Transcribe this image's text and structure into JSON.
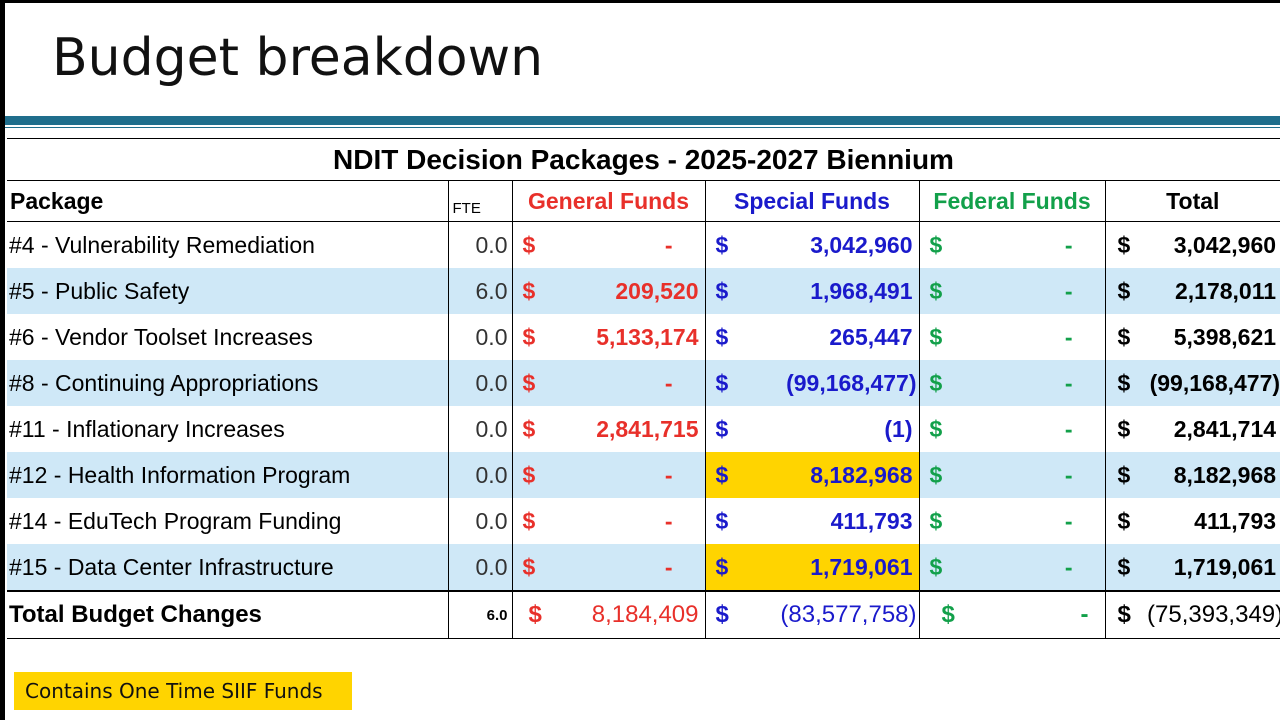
{
  "slide": {
    "title": "Budget breakdown"
  },
  "table": {
    "title": "NDIT Decision Packages - 2025-2027 Biennium",
    "headers": {
      "package": "Package",
      "fte": "FTE",
      "general": "General Funds",
      "special": "Special Funds",
      "federal": "Federal Funds",
      "total": "Total"
    },
    "currency_symbol": "$",
    "rows": [
      {
        "package": "#4 - Vulnerability Remediation",
        "fte": "0.0",
        "general": "-",
        "special": "3,042,960",
        "federal": "-",
        "total": "3,042,960",
        "shaded": false,
        "siif": false
      },
      {
        "package": "#5 - Public Safety",
        "fte": "6.0",
        "general": "209,520",
        "special": "1,968,491",
        "federal": "-",
        "total": "2,178,011",
        "shaded": true,
        "siif": false
      },
      {
        "package": "#6 - Vendor Toolset Increases",
        "fte": "0.0",
        "general": "5,133,174",
        "special": "265,447",
        "federal": "-",
        "total": "5,398,621",
        "shaded": false,
        "siif": false
      },
      {
        "package": "#8 - Continuing Appropriations",
        "fte": "0.0",
        "general": "-",
        "special": "(99,168,477)",
        "federal": "-",
        "total": "(99,168,477)",
        "shaded": true,
        "siif": false
      },
      {
        "package": "#11 - Inflationary Increases",
        "fte": "0.0",
        "general": "2,841,715",
        "special": "(1)",
        "federal": "-",
        "total": "2,841,714",
        "shaded": false,
        "siif": false
      },
      {
        "package": "#12 - Health Information Program",
        "fte": "0.0",
        "general": "-",
        "special": "8,182,968",
        "federal": "-",
        "total": "8,182,968",
        "shaded": true,
        "siif": true
      },
      {
        "package": "#14 - EduTech Program Funding",
        "fte": "0.0",
        "general": "-",
        "special": "411,793",
        "federal": "-",
        "total": "411,793",
        "shaded": false,
        "siif": false
      },
      {
        "package": "#15 - Data Center Infrastructure",
        "fte": "0.0",
        "general": "-",
        "special": "1,719,061",
        "federal": "-",
        "total": "1,719,061",
        "shaded": true,
        "siif": true
      }
    ],
    "total_row": {
      "package": "Total Budget Changes",
      "fte": "6.0",
      "general": "8,184,409",
      "special": "(83,577,758)",
      "federal": "-",
      "total": "(75,393,349)"
    }
  },
  "legend": {
    "label": "Contains One Time SIIF Funds"
  },
  "colors": {
    "general": "#e8302a",
    "special": "#1a1acb",
    "federal": "#12a04a",
    "shaded_row": "#cfe8f7",
    "highlight": "#ffd400",
    "title_rule": "#1f6e8c"
  }
}
